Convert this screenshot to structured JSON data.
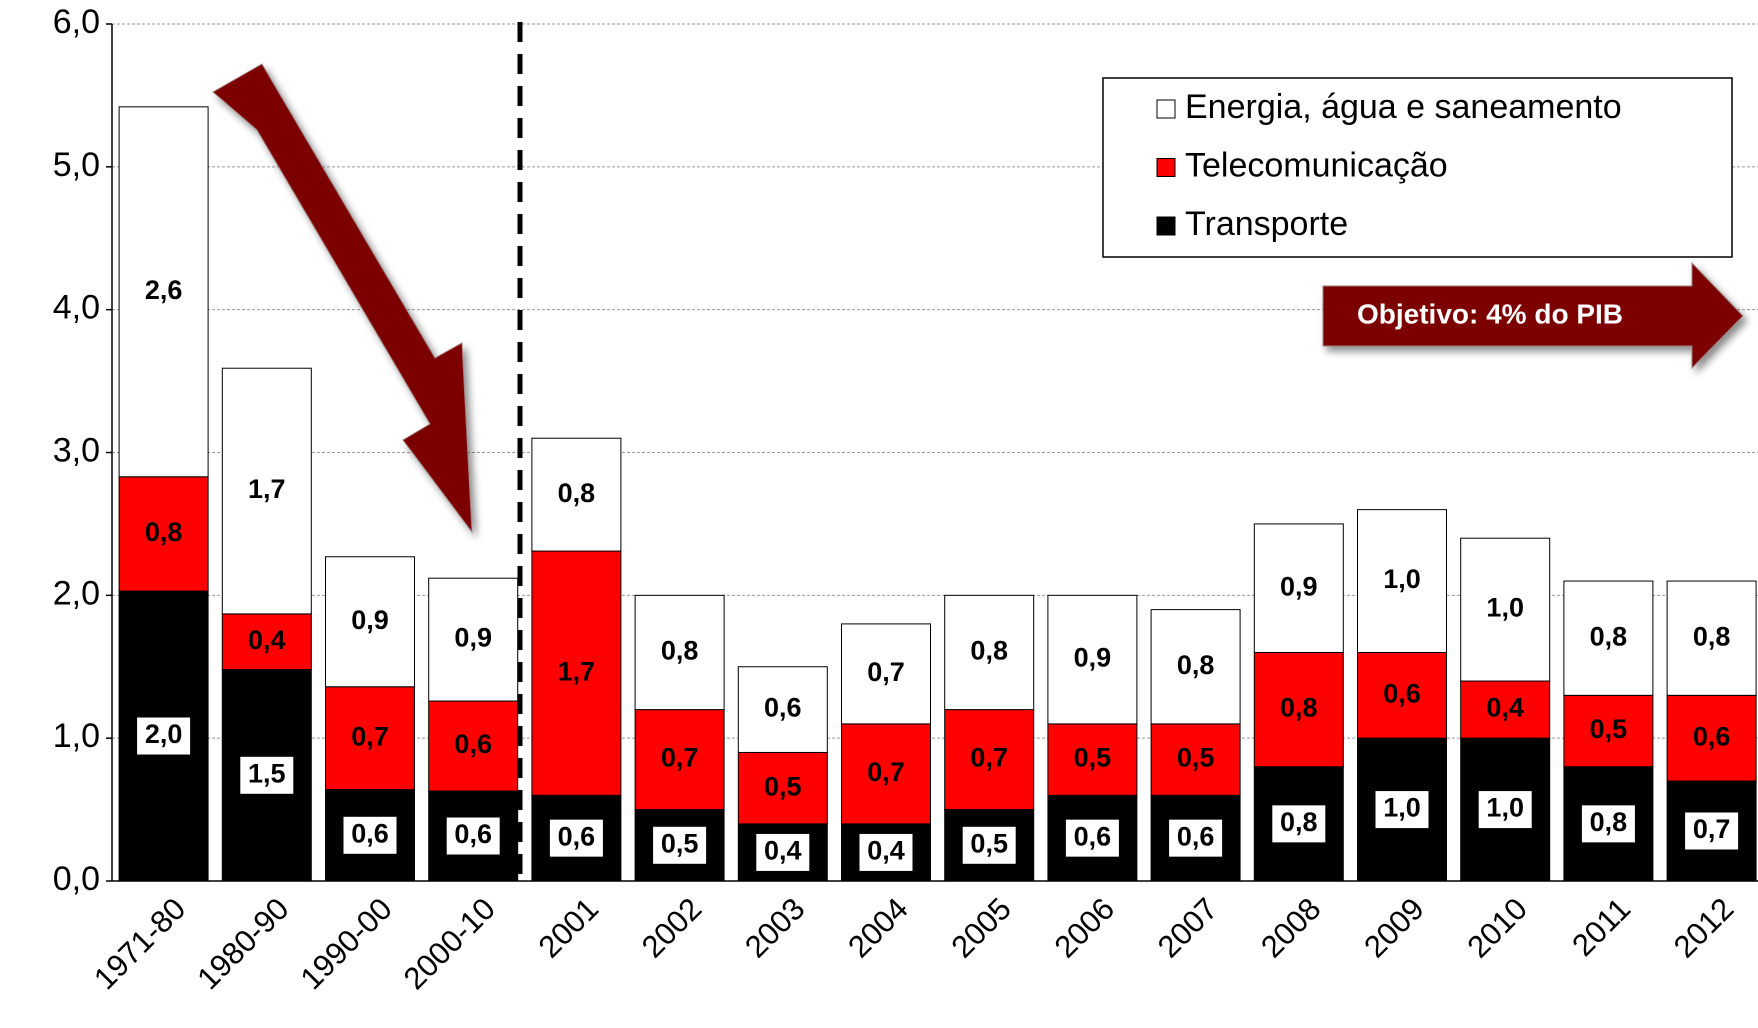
{
  "chart_data": {
    "type": "stacked_bar",
    "categories": [
      "1971-80",
      "1980-90",
      "1990-00",
      "2000-10",
      "2001",
      "2002",
      "2003",
      "2004",
      "2005",
      "2006",
      "2007",
      "2008",
      "2009",
      "2010",
      "2011",
      "2012"
    ],
    "series": [
      {
        "name": "Transporte",
        "color": "#000000",
        "values": [
          2.03,
          1.48,
          0.64,
          0.63,
          0.6,
          0.5,
          0.4,
          0.4,
          0.5,
          0.6,
          0.6,
          0.8,
          1.0,
          1.0,
          0.8,
          0.7
        ],
        "value_labels": [
          "2,0",
          "1,5",
          "0,6",
          "0,6",
          "0,6",
          "0,5",
          "0,4",
          "0,4",
          "0,5",
          "0,6",
          "0,6",
          "0,8",
          "1,0",
          "1,0",
          "0,8",
          "0,7"
        ]
      },
      {
        "name": "Telecomunicação",
        "color": "#ff0000",
        "values": [
          0.8,
          0.39,
          0.72,
          0.63,
          1.71,
          0.7,
          0.5,
          0.7,
          0.7,
          0.5,
          0.5,
          0.8,
          0.6,
          0.4,
          0.5,
          0.6
        ],
        "value_labels": [
          "0,8",
          "0,4",
          "0,7",
          "0,6",
          "1,7",
          "0,7",
          "0,5",
          "0,7",
          "0,7",
          "0,5",
          "0,5",
          "0,8",
          "0,6",
          "0,4",
          "0,5",
          "0,6"
        ]
      },
      {
        "name": "Energia, água e saneamento",
        "color": "#ffffff",
        "values": [
          2.59,
          1.72,
          0.91,
          0.86,
          0.79,
          0.8,
          0.6,
          0.7,
          0.8,
          0.9,
          0.8,
          0.9,
          1.0,
          1.0,
          0.8,
          0.8
        ],
        "value_labels": [
          "2,6",
          "1,7",
          "0,9",
          "0,9",
          "0,8",
          "0,8",
          "0,6",
          "0,7",
          "0,8",
          "0,9",
          "0,8",
          "0,9",
          "1,0",
          "1,0",
          "0,8",
          "0,8"
        ]
      }
    ],
    "ylim": [
      0,
      6
    ],
    "yticks": [
      {
        "value": 0,
        "label": "0,0"
      },
      {
        "value": 1,
        "label": "1,0"
      },
      {
        "value": 2,
        "label": "2,0"
      },
      {
        "value": 3,
        "label": "3,0"
      },
      {
        "value": 4,
        "label": "4,0"
      },
      {
        "value": 5,
        "label": "5,0"
      },
      {
        "value": 6,
        "label": "6,0"
      }
    ],
    "grid": true,
    "legend": "upper right",
    "annotation": "Objetivo: 4% do PIB"
  }
}
